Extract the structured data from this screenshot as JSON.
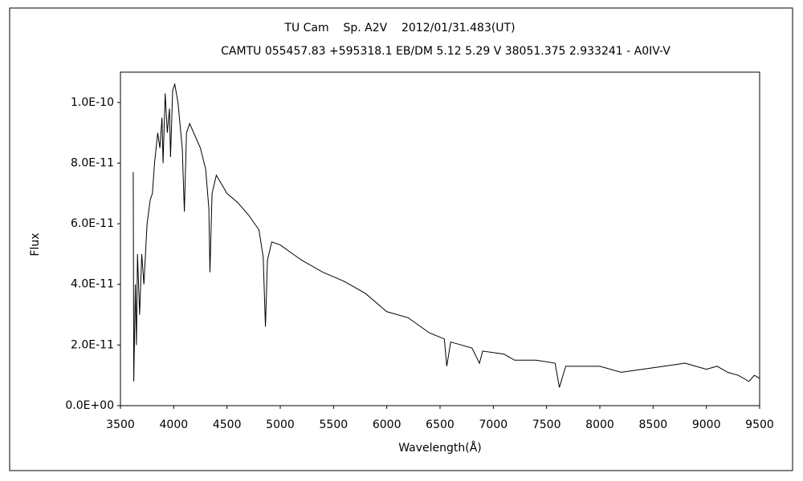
{
  "chart_data": {
    "type": "line",
    "title": "TU Cam    Sp. A2V    2012/01/31.483(UT)",
    "subtitle": "CAMTU 055457.83 +595318.1 EB/DM 5.12 5.29 V 38051.375 2.933241 - A0IV-V",
    "x_label": "Wavelength(Å)",
    "y_label": "Flux",
    "xlim": [
      3500,
      9500
    ],
    "xticks": [
      3500,
      4000,
      4500,
      5000,
      5500,
      6000,
      6500,
      7000,
      7500,
      8000,
      8500,
      9000,
      9500
    ],
    "ylim": [
      0,
      1.1e-10
    ],
    "yticks": [
      {
        "value": 0,
        "label": "0.0E+00"
      },
      {
        "value": 2e-11,
        "label": "2.0E-11"
      },
      {
        "value": 4e-11,
        "label": "4.0E-11"
      },
      {
        "value": 6e-11,
        "label": "6.0E-11"
      },
      {
        "value": 8e-11,
        "label": "8.0E-11"
      },
      {
        "value": 1e-10,
        "label": "1.0E-10"
      }
    ],
    "x": [
      3620,
      3625,
      3640,
      3650,
      3660,
      3680,
      3700,
      3720,
      3750,
      3780,
      3800,
      3820,
      3850,
      3870,
      3890,
      3900,
      3920,
      3940,
      3960,
      3970,
      3990,
      4010,
      4040,
      4080,
      4100,
      4120,
      4150,
      4200,
      4250,
      4300,
      4330,
      4340,
      4360,
      4400,
      4450,
      4500,
      4600,
      4700,
      4800,
      4840,
      4861,
      4880,
      4920,
      5000,
      5200,
      5400,
      5600,
      5800,
      6000,
      6200,
      6400,
      6540,
      6563,
      6600,
      6800,
      6870,
      6900,
      7100,
      7200,
      7400,
      7580,
      7620,
      7680,
      7800,
      8000,
      8200,
      8400,
      8600,
      8800,
      8900,
      9000,
      9100,
      9200,
      9300,
      9400,
      9450,
      9500
    ],
    "series": [
      {
        "color": "#000000",
        "values": [
          7.7e-11,
          8e-12,
          4e-11,
          2e-11,
          5e-11,
          3e-11,
          5e-11,
          4e-11,
          6e-11,
          6.8e-11,
          7e-11,
          8e-11,
          9e-11,
          8.5e-11,
          9.5e-11,
          8e-11,
          1.03e-10,
          9e-11,
          9.8e-11,
          8.2e-11,
          1.04e-10,
          1.06e-10,
          1e-10,
          8.5e-11,
          6.4e-11,
          9e-11,
          9.3e-11,
          8.9e-11,
          8.5e-11,
          7.8e-11,
          6.5e-11,
          4.4e-11,
          7e-11,
          7.6e-11,
          7.3e-11,
          7e-11,
          6.7e-11,
          6.3e-11,
          5.8e-11,
          4.9e-11,
          2.6e-11,
          4.8e-11,
          5.4e-11,
          5.3e-11,
          4.8e-11,
          4.4e-11,
          4.1e-11,
          3.7e-11,
          3.1e-11,
          2.9e-11,
          2.4e-11,
          2.2e-11,
          1.3e-11,
          2.1e-11,
          1.9e-11,
          1.4e-11,
          1.8e-11,
          1.7e-11,
          1.5e-11,
          1.5e-11,
          1.4e-11,
          6e-12,
          1.3e-11,
          1.3e-11,
          1.3e-11,
          1.1e-11,
          1.2e-11,
          1.3e-11,
          1.4e-11,
          1.3e-11,
          1.2e-11,
          1.3e-11,
          1.1e-11,
          1e-11,
          8e-12,
          1e-11,
          9e-12
        ]
      }
    ]
  }
}
